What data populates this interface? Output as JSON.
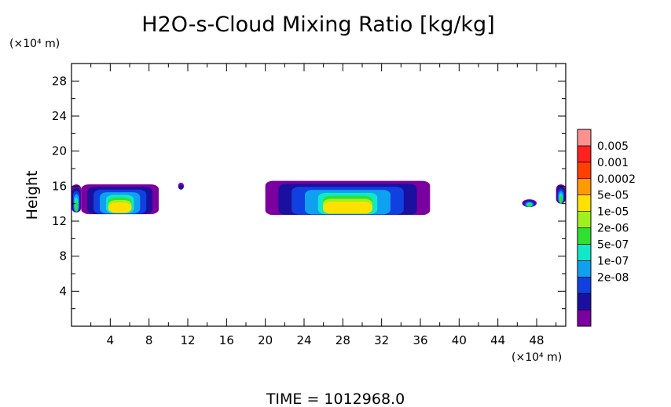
{
  "chart_data": {
    "type": "heatmap",
    "title": "H2O-s-Cloud Mixing Ratio [kg/kg]",
    "xlabel": "",
    "ylabel": "Height",
    "x_unit": "(×10⁴ m)",
    "y_unit": "(×10⁴ m)",
    "xlim": [
      0,
      51
    ],
    "ylim": [
      0,
      30
    ],
    "x_ticks": [
      4,
      8,
      12,
      16,
      20,
      24,
      28,
      32,
      36,
      40,
      44,
      48
    ],
    "y_ticks": [
      4,
      8,
      12,
      16,
      20,
      24,
      28
    ],
    "footer": "TIME = 1012968.0",
    "colorbar": {
      "labels": [
        "0.005",
        "0.001",
        "0.0002",
        "5e-05",
        "1e-05",
        "2e-06",
        "5e-07",
        "1e-07",
        "2e-08"
      ],
      "colors": [
        "#7a00a0",
        "#1a10a0",
        "#1040e0",
        "#10a0f0",
        "#10e8c8",
        "#30e030",
        "#a0f020",
        "#ffe000",
        "#ff9a00",
        "#ff4000",
        "#ff2020",
        "#ff9090"
      ]
    },
    "regions": [
      {
        "x": [
          0,
          1
        ],
        "y": [
          13,
          16.2
        ],
        "peak_level": 5
      },
      {
        "x": [
          1,
          9
        ],
        "y": [
          12.8,
          16.2
        ],
        "peak_level": 7
      },
      {
        "x": [
          11,
          11.6
        ],
        "y": [
          15.6,
          16.4
        ],
        "peak_level": 1
      },
      {
        "x": [
          20,
          37
        ],
        "y": [
          12.7,
          16.6
        ],
        "peak_level": 7
      },
      {
        "x": [
          46.5,
          48
        ],
        "y": [
          13.6,
          14.5
        ],
        "peak_level": 5
      },
      {
        "x": [
          50,
          51
        ],
        "y": [
          14,
          16.2
        ],
        "peak_level": 5
      }
    ]
  }
}
